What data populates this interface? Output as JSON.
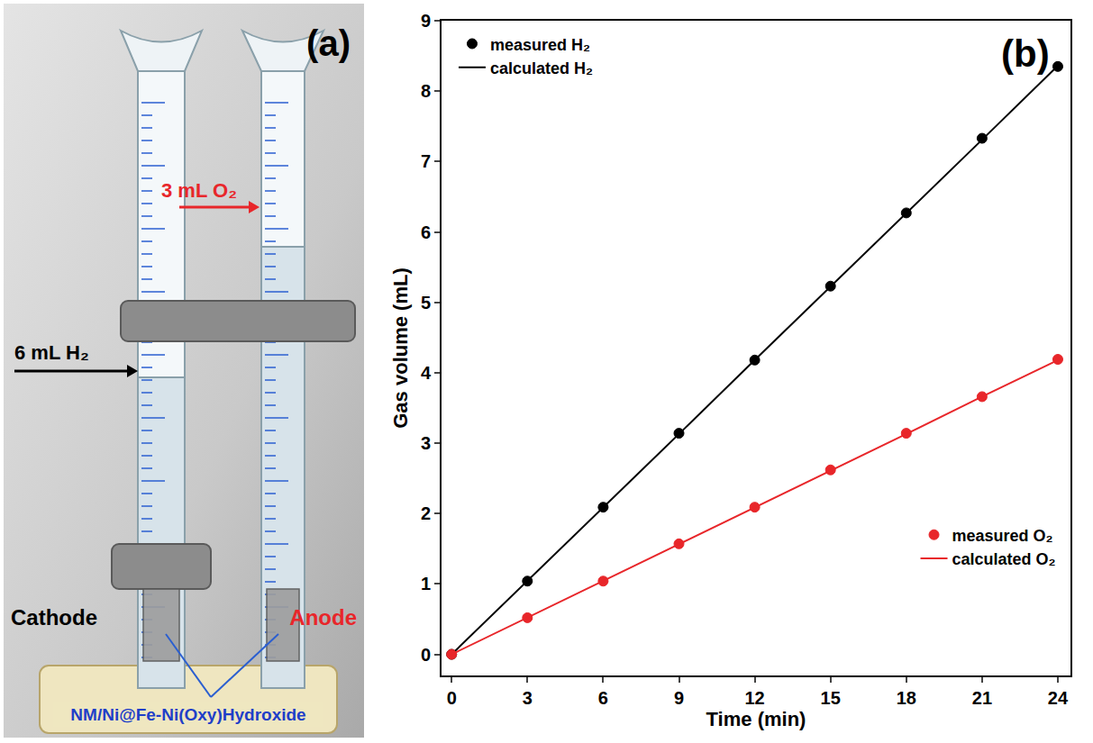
{
  "chart_data": {
    "type": "scatter",
    "panel_label": "(b)",
    "x_label": "Time (min)",
    "y_label": "Gas volume (mL)",
    "x": [
      0,
      3,
      6,
      9,
      12,
      15,
      18,
      21,
      24
    ],
    "series": [
      {
        "name": "measured H₂",
        "color": "#000000",
        "type": "scatter",
        "marker": "circle",
        "legend": "upper left",
        "values": [
          0,
          1.04,
          2.09,
          3.14,
          4.18,
          5.23,
          6.27,
          7.33,
          8.35
        ]
      },
      {
        "name": "calculated H₂",
        "color": "#000000",
        "type": "line",
        "line_style": "solid",
        "legend": "upper left",
        "values": [
          0,
          1.04,
          2.09,
          3.13,
          4.18,
          5.22,
          6.27,
          7.31,
          8.36
        ]
      },
      {
        "name": "measured O₂",
        "color": "#e8262a",
        "type": "scatter",
        "marker": "circle",
        "legend": "lower right",
        "values": [
          0,
          0.52,
          1.04,
          1.57,
          2.09,
          2.62,
          3.14,
          3.66,
          4.19
        ]
      },
      {
        "name": "calculated O₂",
        "color": "#e8262a",
        "type": "line",
        "line_style": "solid",
        "legend": "lower right",
        "values": [
          0,
          0.52,
          1.04,
          1.57,
          2.09,
          2.61,
          3.13,
          3.66,
          4.18
        ]
      }
    ],
    "xlim": [
      -0.4,
      24.5
    ],
    "xticks": [
      0,
      3,
      6,
      9,
      12,
      15,
      18,
      21,
      24
    ],
    "ylim": [
      -0.3,
      9
    ],
    "yticks": [
      0,
      1,
      2,
      3,
      4,
      5,
      6,
      7,
      8,
      9
    ],
    "grid": false
  },
  "photo": {
    "panel_label": "(a)",
    "o2_label": "3 mL O₂",
    "h2_label": "6 mL H₂",
    "cathode_label": "Cathode",
    "anode_label": "Anode",
    "electrode_label": "NM/Ni@Fe-Ni(Oxy)Hydroxide"
  }
}
